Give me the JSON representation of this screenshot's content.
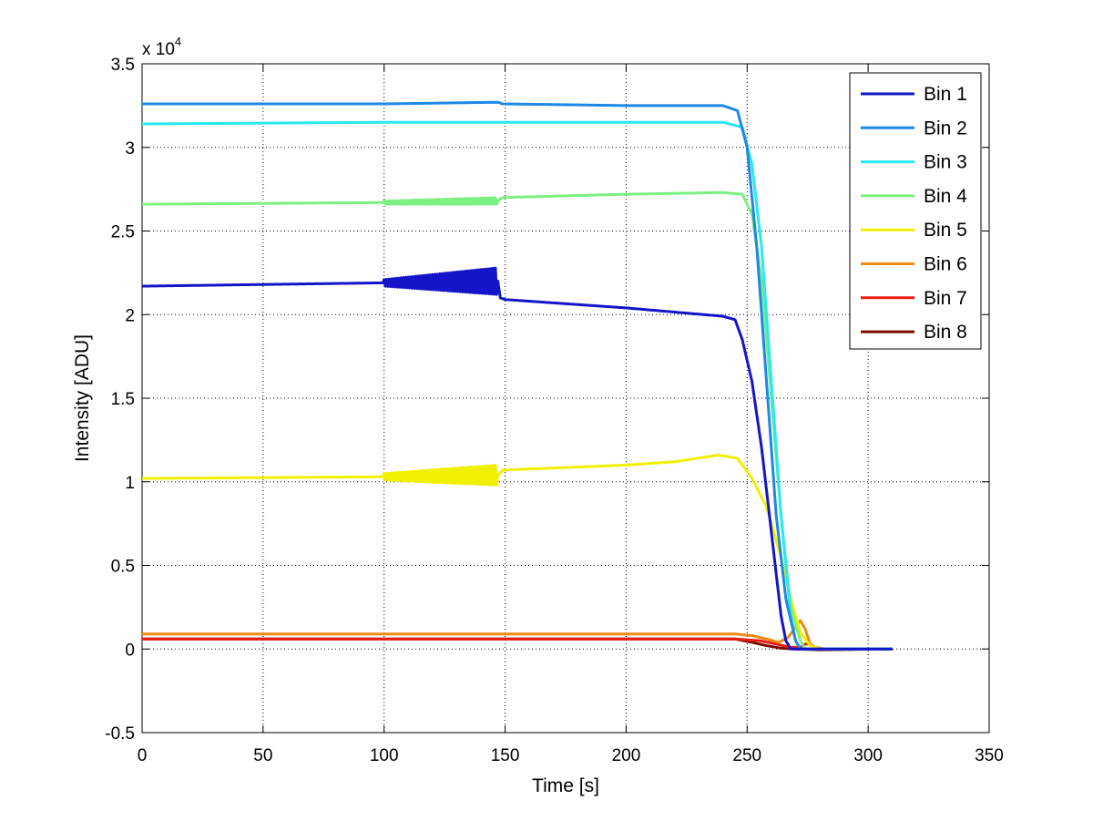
{
  "chart_data": {
    "type": "line",
    "xlabel": "Time [s]",
    "ylabel": "Intensity [ADU]",
    "y_multiplier_label": "x 10",
    "y_multiplier_exponent": "4",
    "xlim": [
      0,
      350
    ],
    "ylim": [
      -0.5,
      3.5
    ],
    "x_ticks": [
      "0",
      "50",
      "100",
      "150",
      "200",
      "250",
      "300",
      "350"
    ],
    "y_ticks": [
      "-0.5",
      "0",
      "0.5",
      "1",
      "1.5",
      "2",
      "2.5",
      "3",
      "3.5"
    ],
    "x_tick_values": [
      0,
      50,
      100,
      150,
      200,
      250,
      300,
      350
    ],
    "y_tick_values": [
      -0.5,
      0,
      0.5,
      1,
      1.5,
      2,
      2.5,
      3,
      3.5
    ],
    "grid": true,
    "grid_style": "dotted",
    "legend_position": "top-right",
    "series": [
      {
        "name": "Bin 1",
        "color": "#1414c8",
        "x": [
          0,
          50,
          100,
          147,
          148,
          150,
          200,
          240,
          245,
          248,
          252,
          256,
          260,
          264,
          266,
          268,
          275,
          310
        ],
        "y": [
          2.17,
          2.18,
          2.19,
          2.2,
          2.1,
          2.09,
          2.04,
          1.99,
          1.97,
          1.85,
          1.6,
          1.2,
          0.7,
          0.2,
          0.05,
          0.0,
          0.0,
          0.0
        ],
        "noise_x": [
          100,
          147
        ],
        "noise_amp": [
          0.02,
          0.08
        ]
      },
      {
        "name": "Bin 2",
        "color": "#1e88e6",
        "x": [
          0,
          100,
          147,
          149,
          200,
          240,
          246,
          250,
          254,
          258,
          262,
          266,
          270,
          272,
          275,
          310
        ],
        "y": [
          3.26,
          3.26,
          3.27,
          3.26,
          3.25,
          3.25,
          3.22,
          3.0,
          2.4,
          1.6,
          0.8,
          0.3,
          0.05,
          0.0,
          0.0,
          0.0
        ]
      },
      {
        "name": "Bin 3",
        "color": "#28e8f0",
        "x": [
          0,
          100,
          200,
          240,
          248,
          252,
          256,
          260,
          264,
          268,
          270,
          272,
          275,
          310
        ],
        "y": [
          3.14,
          3.15,
          3.15,
          3.15,
          3.12,
          2.9,
          2.4,
          1.6,
          0.8,
          0.2,
          0.05,
          0.0,
          0.0,
          0.0
        ]
      },
      {
        "name": "Bin 4",
        "color": "#7cf080",
        "x": [
          0,
          100,
          147,
          149,
          200,
          240,
          248,
          252,
          256,
          260,
          264,
          268,
          272,
          274,
          277,
          310
        ],
        "y": [
          2.66,
          2.67,
          2.68,
          2.7,
          2.72,
          2.73,
          2.72,
          2.6,
          2.2,
          1.5,
          0.8,
          0.25,
          0.05,
          0.0,
          0.0,
          0.0
        ],
        "noise_x": [
          100,
          147
        ],
        "noise_amp": [
          0.01,
          0.02
        ]
      },
      {
        "name": "Bin 5",
        "color": "#f0f000",
        "x": [
          0,
          100,
          147,
          149,
          200,
          220,
          238,
          246,
          252,
          258,
          264,
          268,
          272,
          276,
          280,
          310
        ],
        "y": [
          1.02,
          1.03,
          1.04,
          1.07,
          1.1,
          1.12,
          1.16,
          1.14,
          1.02,
          0.85,
          0.55,
          0.3,
          0.1,
          0.02,
          0.0,
          0.0
        ],
        "noise_x": [
          100,
          147
        ],
        "noise_amp": [
          0.02,
          0.06
        ]
      },
      {
        "name": "Bin 6",
        "color": "#f08a14",
        "x": [
          0,
          100,
          200,
          245,
          252,
          258,
          263,
          267,
          270,
          272,
          274,
          276,
          278,
          282,
          310
        ],
        "y": [
          0.09,
          0.09,
          0.09,
          0.09,
          0.08,
          0.06,
          0.04,
          0.07,
          0.13,
          0.17,
          0.12,
          0.03,
          0.01,
          0.0,
          0.0
        ]
      },
      {
        "name": "Bin 7",
        "color": "#e81c14",
        "x": [
          0,
          100,
          200,
          245,
          255,
          262,
          268,
          272,
          274,
          276,
          278,
          282,
          310
        ],
        "y": [
          0.06,
          0.06,
          0.06,
          0.06,
          0.05,
          0.03,
          0.01,
          0.01,
          0.03,
          0.03,
          0.01,
          0.0,
          0.0
        ]
      },
      {
        "name": "Bin 8",
        "color": "#7a0a00",
        "x": [
          0,
          100,
          200,
          245,
          252,
          258,
          264,
          270,
          280,
          310
        ],
        "y": [
          0.06,
          0.06,
          0.06,
          0.06,
          0.04,
          0.02,
          0.005,
          0.0,
          -0.005,
          0.0
        ]
      }
    ]
  }
}
